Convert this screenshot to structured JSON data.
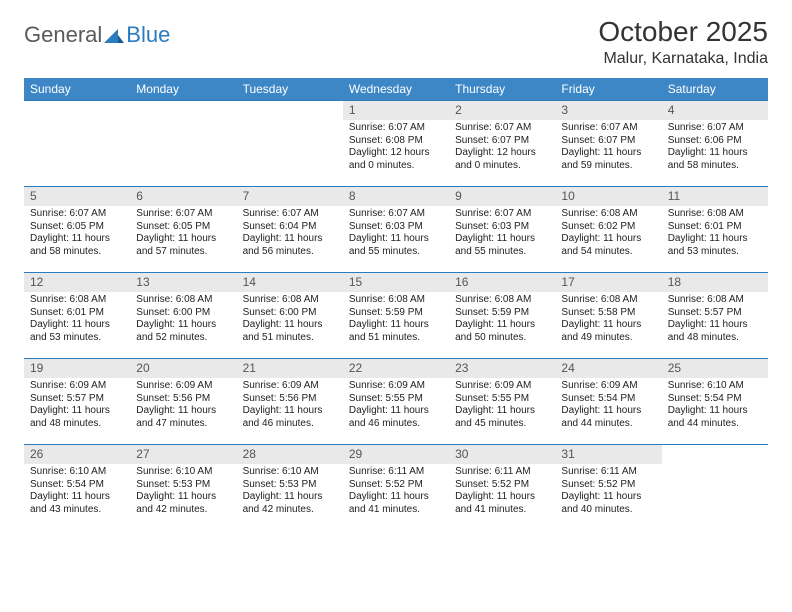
{
  "brand": {
    "part1": "General",
    "part2": "Blue"
  },
  "title": "October 2025",
  "location": "Malur, Karnataka, India",
  "colors": {
    "header_bg": "#3d87c7",
    "rule": "#2b7bbf",
    "daynum_bg": "#e9e9e9",
    "text": "#222222"
  },
  "day_names": [
    "Sunday",
    "Monday",
    "Tuesday",
    "Wednesday",
    "Thursday",
    "Friday",
    "Saturday"
  ],
  "weeks": [
    [
      null,
      null,
      null,
      {
        "n": "1",
        "rise": "6:07 AM",
        "set": "6:08 PM",
        "dl": "12 hours and 0 minutes."
      },
      {
        "n": "2",
        "rise": "6:07 AM",
        "set": "6:07 PM",
        "dl": "12 hours and 0 minutes."
      },
      {
        "n": "3",
        "rise": "6:07 AM",
        "set": "6:07 PM",
        "dl": "11 hours and 59 minutes."
      },
      {
        "n": "4",
        "rise": "6:07 AM",
        "set": "6:06 PM",
        "dl": "11 hours and 58 minutes."
      }
    ],
    [
      {
        "n": "5",
        "rise": "6:07 AM",
        "set": "6:05 PM",
        "dl": "11 hours and 58 minutes."
      },
      {
        "n": "6",
        "rise": "6:07 AM",
        "set": "6:05 PM",
        "dl": "11 hours and 57 minutes."
      },
      {
        "n": "7",
        "rise": "6:07 AM",
        "set": "6:04 PM",
        "dl": "11 hours and 56 minutes."
      },
      {
        "n": "8",
        "rise": "6:07 AM",
        "set": "6:03 PM",
        "dl": "11 hours and 55 minutes."
      },
      {
        "n": "9",
        "rise": "6:07 AM",
        "set": "6:03 PM",
        "dl": "11 hours and 55 minutes."
      },
      {
        "n": "10",
        "rise": "6:08 AM",
        "set": "6:02 PM",
        "dl": "11 hours and 54 minutes."
      },
      {
        "n": "11",
        "rise": "6:08 AM",
        "set": "6:01 PM",
        "dl": "11 hours and 53 minutes."
      }
    ],
    [
      {
        "n": "12",
        "rise": "6:08 AM",
        "set": "6:01 PM",
        "dl": "11 hours and 53 minutes."
      },
      {
        "n": "13",
        "rise": "6:08 AM",
        "set": "6:00 PM",
        "dl": "11 hours and 52 minutes."
      },
      {
        "n": "14",
        "rise": "6:08 AM",
        "set": "6:00 PM",
        "dl": "11 hours and 51 minutes."
      },
      {
        "n": "15",
        "rise": "6:08 AM",
        "set": "5:59 PM",
        "dl": "11 hours and 51 minutes."
      },
      {
        "n": "16",
        "rise": "6:08 AM",
        "set": "5:59 PM",
        "dl": "11 hours and 50 minutes."
      },
      {
        "n": "17",
        "rise": "6:08 AM",
        "set": "5:58 PM",
        "dl": "11 hours and 49 minutes."
      },
      {
        "n": "18",
        "rise": "6:08 AM",
        "set": "5:57 PM",
        "dl": "11 hours and 48 minutes."
      }
    ],
    [
      {
        "n": "19",
        "rise": "6:09 AM",
        "set": "5:57 PM",
        "dl": "11 hours and 48 minutes."
      },
      {
        "n": "20",
        "rise": "6:09 AM",
        "set": "5:56 PM",
        "dl": "11 hours and 47 minutes."
      },
      {
        "n": "21",
        "rise": "6:09 AM",
        "set": "5:56 PM",
        "dl": "11 hours and 46 minutes."
      },
      {
        "n": "22",
        "rise": "6:09 AM",
        "set": "5:55 PM",
        "dl": "11 hours and 46 minutes."
      },
      {
        "n": "23",
        "rise": "6:09 AM",
        "set": "5:55 PM",
        "dl": "11 hours and 45 minutes."
      },
      {
        "n": "24",
        "rise": "6:09 AM",
        "set": "5:54 PM",
        "dl": "11 hours and 44 minutes."
      },
      {
        "n": "25",
        "rise": "6:10 AM",
        "set": "5:54 PM",
        "dl": "11 hours and 44 minutes."
      }
    ],
    [
      {
        "n": "26",
        "rise": "6:10 AM",
        "set": "5:54 PM",
        "dl": "11 hours and 43 minutes."
      },
      {
        "n": "27",
        "rise": "6:10 AM",
        "set": "5:53 PM",
        "dl": "11 hours and 42 minutes."
      },
      {
        "n": "28",
        "rise": "6:10 AM",
        "set": "5:53 PM",
        "dl": "11 hours and 42 minutes."
      },
      {
        "n": "29",
        "rise": "6:11 AM",
        "set": "5:52 PM",
        "dl": "11 hours and 41 minutes."
      },
      {
        "n": "30",
        "rise": "6:11 AM",
        "set": "5:52 PM",
        "dl": "11 hours and 41 minutes."
      },
      {
        "n": "31",
        "rise": "6:11 AM",
        "set": "5:52 PM",
        "dl": "11 hours and 40 minutes."
      },
      null
    ]
  ],
  "labels": {
    "sunrise": "Sunrise:",
    "sunset": "Sunset:",
    "daylight": "Daylight:"
  }
}
